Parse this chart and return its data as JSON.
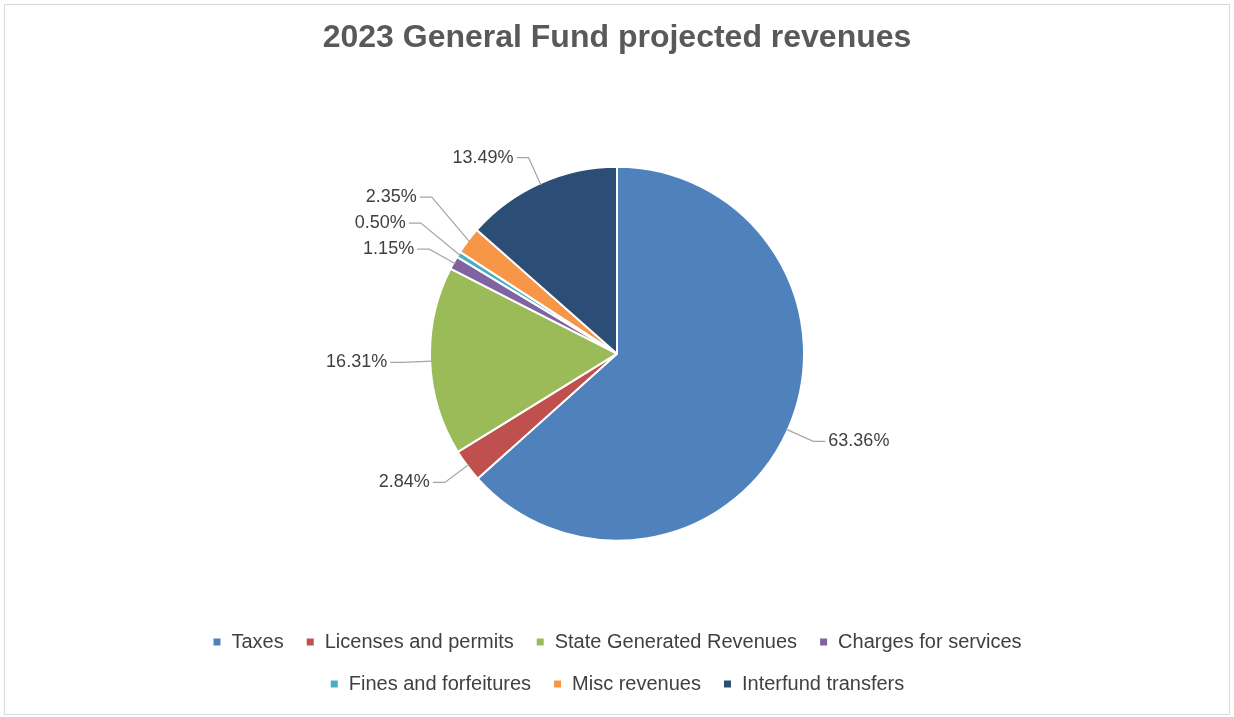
{
  "chart_data": {
    "type": "pie",
    "title": "2023 General Fund projected revenues",
    "categories": [
      "Taxes",
      "Licenses and permits",
      "State Generated Revenues",
      "Charges for services",
      "Fines and forfeitures",
      "Misc revenues",
      "Interfund transfers"
    ],
    "values": [
      63.36,
      2.84,
      16.31,
      1.15,
      0.5,
      2.35,
      13.49
    ],
    "value_labels": [
      "63.36%",
      "2.84%",
      "16.31%",
      "1.15%",
      "0.50%",
      "2.35%",
      "13.49%"
    ],
    "colors": [
      "#4f81bd",
      "#c0504d",
      "#9bbb59",
      "#8064a2",
      "#4bacc6",
      "#f79646",
      "#2c4d75"
    ],
    "legend": "bottom"
  }
}
